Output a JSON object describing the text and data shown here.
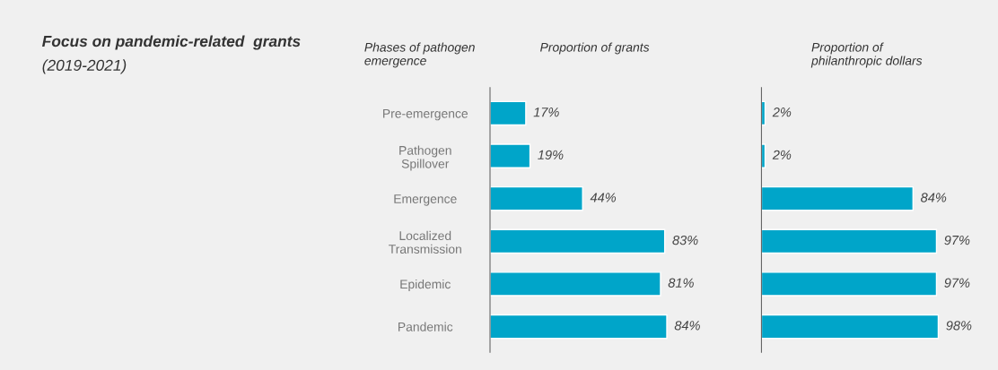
{
  "chart_data": [
    {
      "type": "other",
      "title": "Focus on pandemic-related  grants",
      "subtitle": "(2019-2021)"
    },
    {
      "type": "bar",
      "orientation": "horizontal",
      "title": "Proportion of grants",
      "ylabel": "Phases of pathogen\nemergence",
      "categories": [
        "Pre-emergence",
        "Pathogen\nSpillover",
        "Emergence",
        "Localized\nTransmission",
        "Epidemic",
        "Pandemic"
      ],
      "values": [
        17,
        19,
        44,
        83,
        81,
        84
      ],
      "color": "#00a5c9",
      "value_labels": [
        "17%",
        "19%",
        "44%",
        "83%",
        "81%",
        "84%"
      ],
      "grid": false,
      "legend": false
    },
    {
      "type": "bar",
      "orientation": "horizontal",
      "title": "Proportion of\nphilanthropic dollars",
      "categories": [
        null,
        null,
        null,
        null,
        null,
        null
      ],
      "values": [
        2,
        2,
        84,
        97,
        97,
        98
      ],
      "color": "#00a5c9",
      "value_labels": [
        "2%",
        "2%",
        "84%",
        "97%",
        "97%",
        "98%"
      ],
      "grid": false,
      "legend": false
    }
  ]
}
